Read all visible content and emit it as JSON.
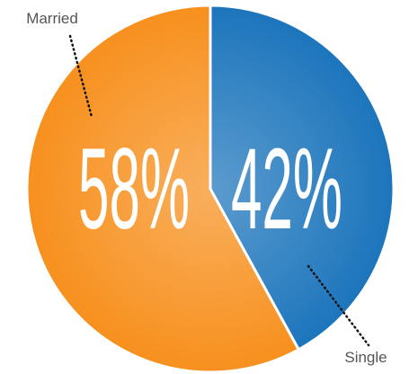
{
  "chart_data": {
    "type": "pie",
    "categories": [
      "Married",
      "Single"
    ],
    "values": [
      58,
      42
    ],
    "value_labels": [
      "58%",
      "42%"
    ],
    "colors": [
      "#f7901e",
      "#1c75bc"
    ]
  }
}
